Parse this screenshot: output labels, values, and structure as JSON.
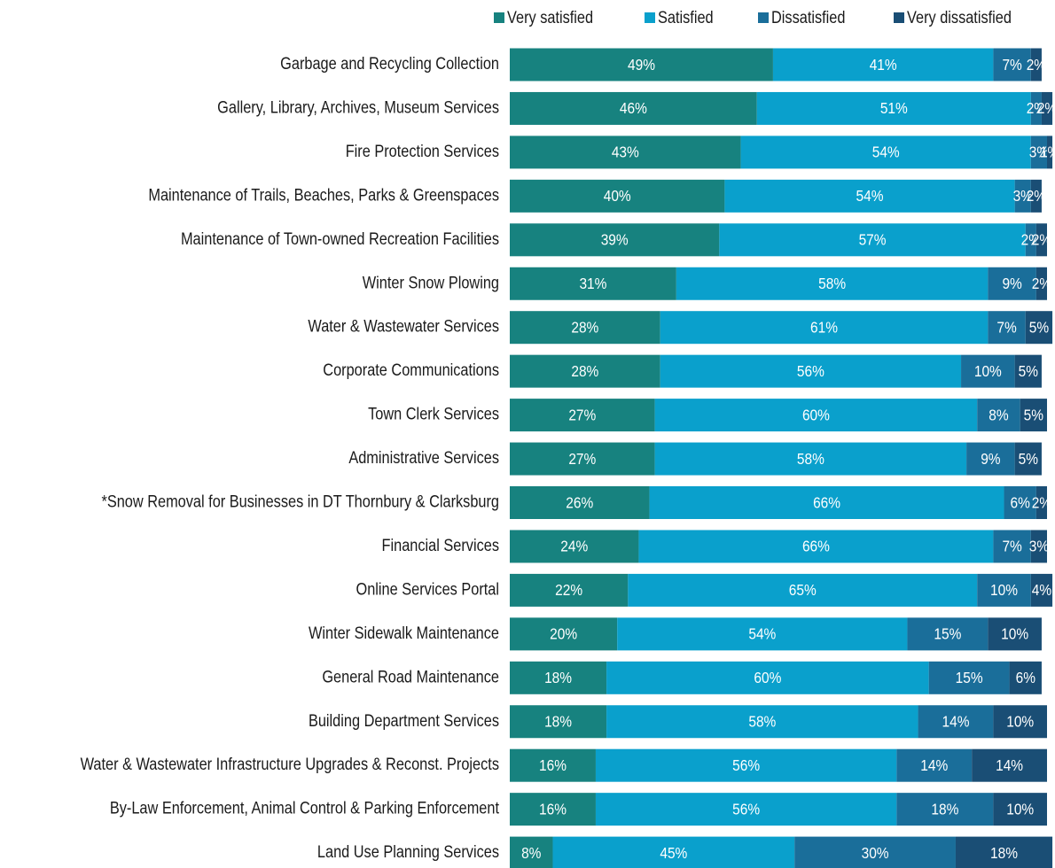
{
  "chart_data": {
    "type": "stacked_barh",
    "categories": [
      "Garbage and Recycling Collection",
      "Gallery, Library, Archives, Museum Services",
      "Fire Protection Services",
      "Maintenance of Trails, Beaches, Parks & Greenspaces",
      "Maintenance of Town-owned Recreation Facilities",
      "Winter Snow Plowing",
      "Water & Wastewater Services",
      "Corporate Communications",
      "Town Clerk Services",
      "Administrative Services",
      "*Snow Removal for Businesses in DT Thornbury & Clarksburg",
      "Financial Services",
      "Online Services Portal",
      "Winter Sidewalk Maintenance",
      "General Road Maintenance",
      "Building Department Services",
      "Water & Wastewater Infrastructure Upgrades & Reconst. Projects",
      "By-Law Enforcement, Animal Control & Parking Enforcement",
      "Land Use Planning Services"
    ],
    "series": [
      {
        "name": "Very satisfied",
        "color": "#17827f",
        "values": [
          49,
          46,
          43,
          40,
          39,
          31,
          28,
          28,
          27,
          27,
          26,
          24,
          22,
          20,
          18,
          18,
          16,
          16,
          8
        ],
        "value_labels": [
          "49%",
          "46%",
          "43%",
          "40%",
          "39%",
          "31%",
          "28%",
          "28%",
          "27%",
          "27%",
          "26%",
          "24%",
          "22%",
          "20%",
          "18%",
          "18%",
          "16%",
          "16%",
          "8%"
        ]
      },
      {
        "name": "Satisfied",
        "color": "#0aa0cc",
        "values": [
          41,
          51,
          54,
          54,
          57,
          58,
          61,
          56,
          60,
          58,
          66,
          66,
          65,
          54,
          60,
          58,
          56,
          56,
          45
        ],
        "value_labels": [
          "41%",
          "51%",
          "54%",
          "54%",
          "57%",
          "58%",
          "61%",
          "56%",
          "60%",
          "58%",
          "66%",
          "66%",
          "65%",
          "54%",
          "60%",
          "58%",
          "56%",
          "56%",
          "45%"
        ]
      },
      {
        "name": "Dissatisfied",
        "color": "#1a6e9a",
        "values": [
          7,
          2,
          3,
          3,
          2,
          9,
          7,
          10,
          8,
          9,
          6,
          7,
          10,
          15,
          15,
          14,
          14,
          18,
          30
        ],
        "value_labels": [
          "7%",
          "2%",
          "3%",
          "3%",
          "2%",
          "9%",
          "7%",
          "10%",
          "8%",
          "9%",
          "6%",
          "7%",
          "10%",
          "15%",
          "15%",
          "14%",
          "14%",
          "18%",
          "30%"
        ]
      },
      {
        "name": "Very dissatisfied",
        "color": "#1a4e75",
        "values": [
          2,
          2,
          1,
          2,
          2,
          2,
          5,
          5,
          5,
          5,
          2,
          3,
          4,
          10,
          6,
          10,
          14,
          10,
          18
        ],
        "value_labels": [
          "2%",
          "2%",
          "1%",
          "2%",
          "2%",
          "2%",
          "5%",
          "5%",
          "5%",
          "5%",
          "2%",
          "3%",
          "4%",
          "10%",
          "6%",
          "10%",
          "14%",
          "10%",
          "18%"
        ]
      }
    ],
    "xlim": [
      0,
      100
    ],
    "legend": "top"
  }
}
